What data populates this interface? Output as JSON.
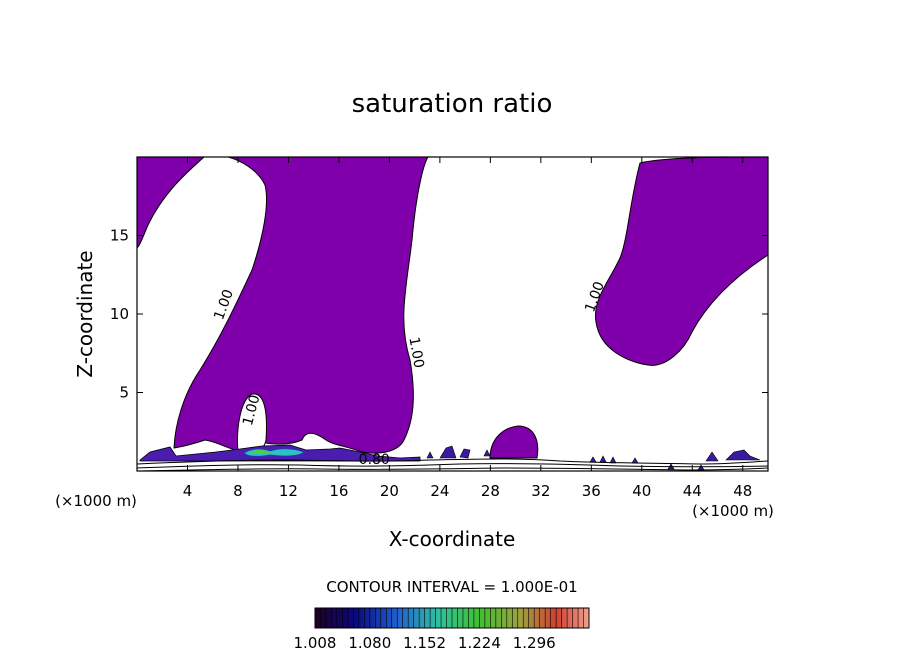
{
  "chart_data": {
    "type": "contour",
    "title": "saturation ratio",
    "xlabel": "X-coordinate",
    "ylabel": "Z-coordinate",
    "x_unit": "(×1000 m)",
    "y_unit": "(×1000 m)",
    "xlim": [
      0,
      50
    ],
    "ylim": [
      0,
      20
    ],
    "x_ticks": [
      4,
      8,
      12,
      16,
      20,
      24,
      28,
      32,
      36,
      40,
      44,
      48
    ],
    "y_ticks": [
      5,
      10,
      15
    ],
    "fill_color": "#7f00aa",
    "contour_labels": [
      {
        "text": "1.00",
        "x": 7.2,
        "y": 10.5
      },
      {
        "text": "1.00",
        "x": 21.8,
        "y": 7.5
      },
      {
        "text": "1.00",
        "x": 36.6,
        "y": 11.0
      },
      {
        "text": "1.00",
        "x": 9.4,
        "y": 3.8
      },
      {
        "text": "0.80",
        "x": 18.8,
        "y": 0.45
      }
    ],
    "footer": "CONTOUR INTERVAL = 1.000E-01",
    "colorbar": {
      "labels": [
        "1.008",
        "1.080",
        "1.152",
        "1.224",
        "1.296"
      ],
      "range": [
        1.008,
        1.368
      ]
    }
  }
}
